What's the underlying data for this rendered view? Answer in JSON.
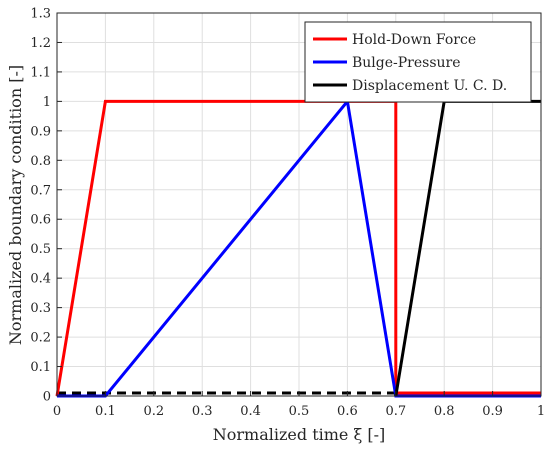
{
  "chart_data": {
    "type": "line",
    "title": "",
    "xlabel": "Normalized time ξ [-]",
    "ylabel": "Normalized boundary condition [-]",
    "xlim": [
      0,
      1
    ],
    "ylim": [
      0,
      1.3
    ],
    "xticks": [
      "0",
      "0.1",
      "0.2",
      "0.3",
      "0.4",
      "0.5",
      "0.6",
      "0.7",
      "0.8",
      "0.9",
      "1"
    ],
    "yticks": [
      "0",
      "0.1",
      "0.2",
      "0.3",
      "0.4",
      "0.5",
      "0.6",
      "0.7",
      "0.8",
      "0.9",
      "1",
      "1.1",
      "1.2",
      "1.3"
    ],
    "grid": true,
    "legend_position": "top-right",
    "series": [
      {
        "name": "Hold-Down Force",
        "color": "#ff0000",
        "x": [
          0,
          0.1,
          0.7,
          0.7,
          1.0
        ],
        "y": [
          0,
          1,
          1,
          0.01,
          0.01
        ]
      },
      {
        "name": "Bulge-Pressure",
        "color": "#0000ff",
        "x": [
          0,
          0.1,
          0.6,
          0.7,
          1.0
        ],
        "y": [
          0,
          0,
          1,
          0,
          0
        ]
      },
      {
        "name": "Displacement U. C. D.",
        "color": "#000000",
        "x": [
          0.7,
          0.8,
          1.0
        ],
        "y": [
          0,
          1,
          1
        ]
      }
    ],
    "extra_lines": [
      {
        "style": "dashed",
        "color": "#000000",
        "x": [
          0,
          0.7
        ],
        "y": [
          0.01,
          0.01
        ]
      }
    ]
  }
}
